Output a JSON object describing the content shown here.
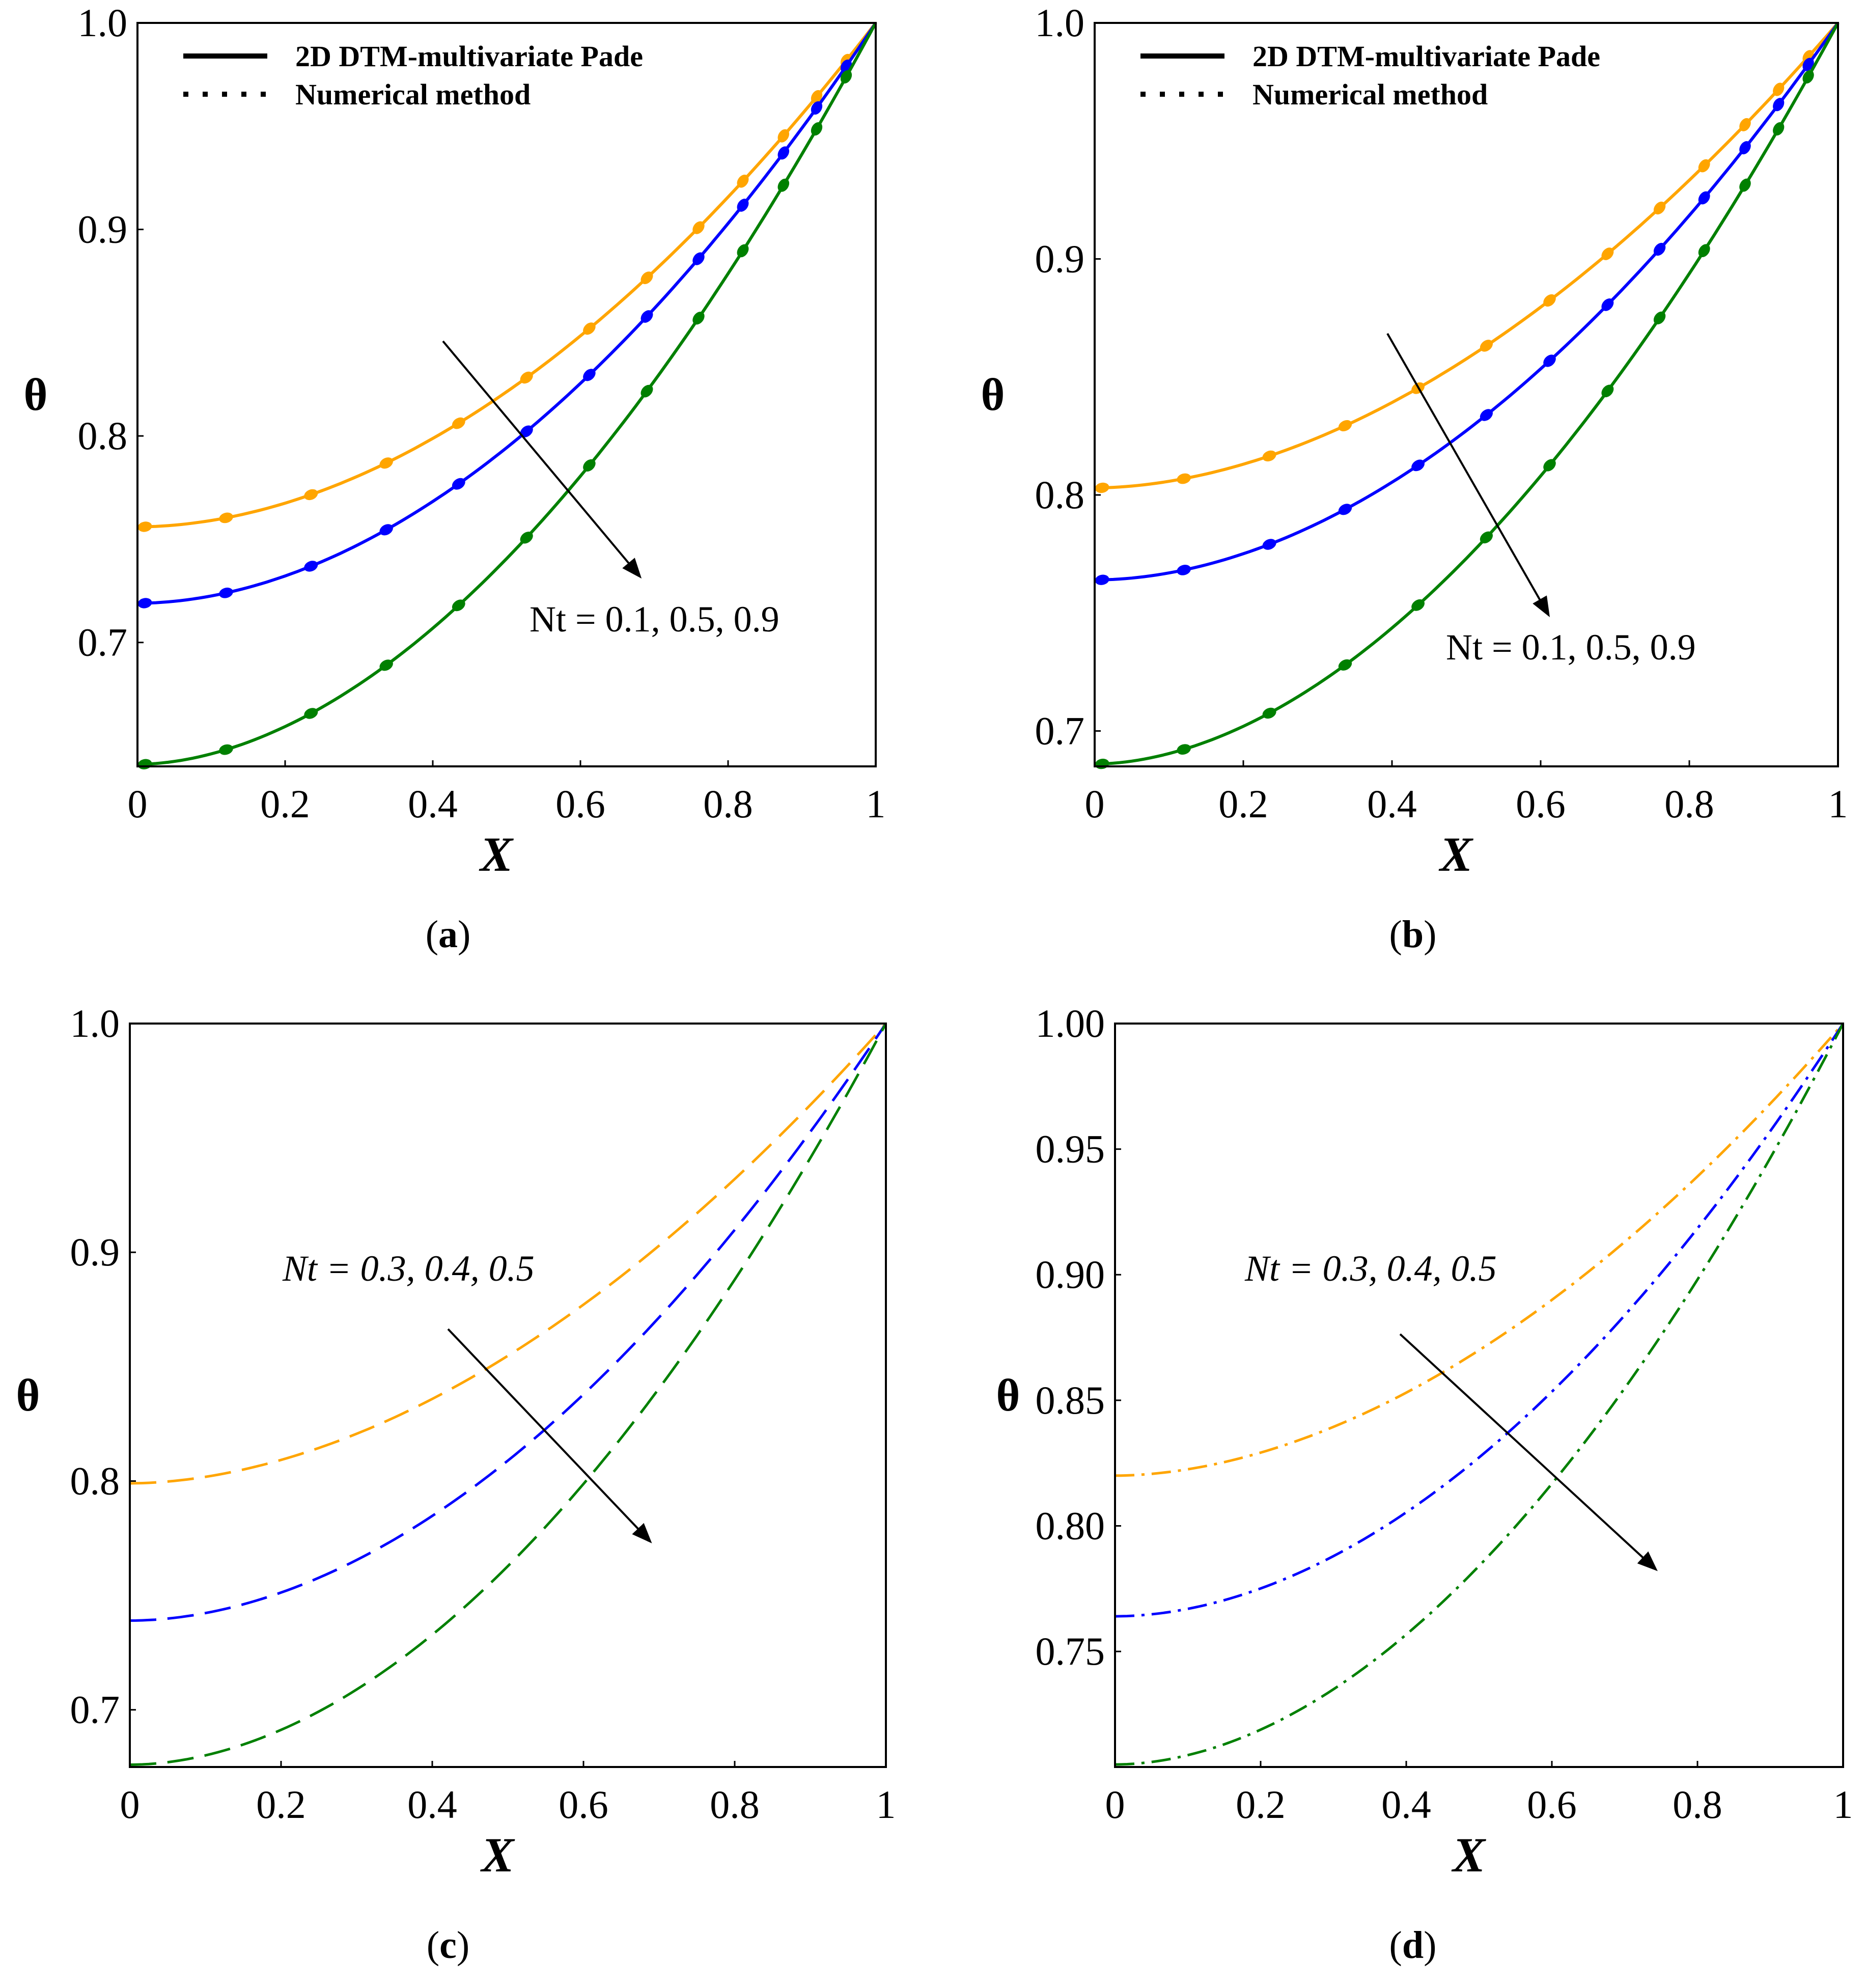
{
  "chart_data": [
    {
      "panel": "a",
      "type": "line",
      "caption_letter": "a",
      "xlabel": "X",
      "ylabel": "θ",
      "xlim": [
        0,
        1
      ],
      "ylim": [
        0.64,
        1.0
      ],
      "xticks": [
        0,
        0.2,
        0.4,
        0.6,
        0.8,
        1
      ],
      "xtick_labels": [
        "0",
        "0.2",
        "0.4",
        "0.6",
        "0.8",
        "1"
      ],
      "yticks": [
        0.7,
        0.8,
        0.9,
        1.0
      ],
      "ytick_labels": [
        "0.7",
        "0.8",
        "0.9",
        "1.0"
      ],
      "legend": [
        {
          "label": "2D DTM-multivariate Pade",
          "style": "solid"
        },
        {
          "label": "Numerical method",
          "style": "dotted"
        }
      ],
      "annotation": "Nt = 0.1, 0.5, 0.9",
      "annotation_italic": false,
      "series": [
        {
          "name": "Nt = 0.1",
          "color": "#FFA500",
          "line": "solid",
          "markers": true,
          "theta0": 0.756,
          "shape": 1.9
        },
        {
          "name": "Nt = 0.5",
          "color": "#0000FF",
          "line": "solid",
          "markers": true,
          "theta0": 0.719,
          "shape": 1.9
        },
        {
          "name": "Nt = 0.9",
          "color": "#008000",
          "line": "solid",
          "markers": true,
          "theta0": 0.641,
          "shape": 1.85
        }
      ]
    },
    {
      "panel": "b",
      "type": "line",
      "caption_letter": "b",
      "xlabel": "X",
      "ylabel": "θ",
      "xlim": [
        0,
        1
      ],
      "ylim": [
        0.685,
        1.0
      ],
      "xticks": [
        0,
        0.2,
        0.4,
        0.6,
        0.8,
        1
      ],
      "xtick_labels": [
        "0",
        "0.2",
        "0.4",
        "0.6",
        "0.8",
        "1"
      ],
      "yticks": [
        0.7,
        0.8,
        0.9,
        1.0
      ],
      "ytick_labels": [
        "0.7",
        "0.8",
        "0.9",
        "1.0"
      ],
      "legend": [
        {
          "label": "2D DTM-multivariate Pade",
          "style": "solid"
        },
        {
          "label": "Numerical method",
          "style": "dotted"
        }
      ],
      "annotation": "Nt = 0.1, 0.5, 0.9",
      "annotation_italic": false,
      "series": [
        {
          "name": "Nt = 0.1",
          "color": "#FFA500",
          "line": "solid",
          "markers": true,
          "theta0": 0.803,
          "shape": 1.85
        },
        {
          "name": "Nt = 0.5",
          "color": "#0000FF",
          "line": "solid",
          "markers": true,
          "theta0": 0.764,
          "shape": 1.9
        },
        {
          "name": "Nt = 0.9",
          "color": "#008000",
          "line": "solid",
          "markers": true,
          "theta0": 0.686,
          "shape": 1.85
        }
      ]
    },
    {
      "panel": "c",
      "type": "line",
      "caption_letter": "c",
      "xlabel": "X",
      "ylabel": "θ",
      "xlim": [
        0,
        1
      ],
      "ylim": [
        0.675,
        1.0
      ],
      "xticks": [
        0,
        0.2,
        0.4,
        0.6,
        0.8,
        1
      ],
      "xtick_labels": [
        "0",
        "0.2",
        "0.4",
        "0.6",
        "0.8",
        "1"
      ],
      "yticks": [
        0.7,
        0.8,
        0.9,
        1.0
      ],
      "ytick_labels": [
        "0.7",
        "0.8",
        "0.9",
        "1.0"
      ],
      "legend": [],
      "annotation": "Nt = 0.3, 0.4, 0.5",
      "annotation_italic": true,
      "series": [
        {
          "name": "Nt = 0.3",
          "color": "#FFA500",
          "line": "dashed",
          "markers": false,
          "theta0": 0.799,
          "shape": 1.85
        },
        {
          "name": "Nt = 0.4",
          "color": "#0000FF",
          "line": "dashed",
          "markers": false,
          "theta0": 0.739,
          "shape": 1.9
        },
        {
          "name": "Nt = 0.5",
          "color": "#008000",
          "line": "dashed",
          "markers": false,
          "theta0": 0.676,
          "shape": 1.9
        }
      ]
    },
    {
      "panel": "d",
      "type": "line",
      "caption_letter": "d",
      "xlabel": "X",
      "ylabel": "θ",
      "xlim": [
        0,
        1
      ],
      "ylim": [
        0.704,
        1.0
      ],
      "xticks": [
        0,
        0.2,
        0.4,
        0.6,
        0.8,
        1
      ],
      "xtick_labels": [
        "0",
        "0.2",
        "0.4",
        "0.6",
        "0.8",
        "1"
      ],
      "yticks": [
        0.75,
        0.8,
        0.85,
        0.9,
        0.95,
        1.0
      ],
      "ytick_labels": [
        "0.75",
        "0.80",
        "0.85",
        "0.90",
        "0.95",
        "1.00"
      ],
      "legend": [],
      "annotation": "Nt = 0.3, 0.4, 0.5",
      "annotation_italic": true,
      "series": [
        {
          "name": "Nt = 0.3",
          "color": "#FFA500",
          "line": "dashdot",
          "markers": false,
          "theta0": 0.82,
          "shape": 1.85
        },
        {
          "name": "Nt = 0.4",
          "color": "#0000FF",
          "line": "dashdot",
          "markers": false,
          "theta0": 0.764,
          "shape": 1.9
        },
        {
          "name": "Nt = 0.5",
          "color": "#008000",
          "line": "dashdot",
          "markers": false,
          "theta0": 0.705,
          "shape": 1.9
        }
      ]
    }
  ]
}
